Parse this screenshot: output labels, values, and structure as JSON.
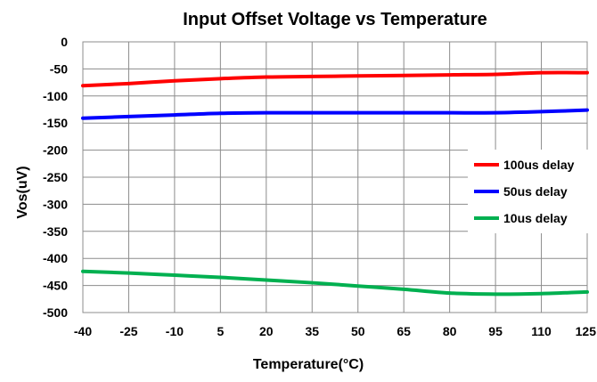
{
  "chart_data": {
    "type": "line",
    "title": "Input Offset Voltage vs Temperature",
    "xlabel": "Temperature(°C)",
    "ylabel": "Vos(uV)",
    "x": [
      -40,
      -25,
      -10,
      5,
      20,
      35,
      50,
      65,
      80,
      95,
      110,
      125
    ],
    "x_tick_labels": [
      "-40",
      "-25",
      "-10",
      "5",
      "20",
      "35",
      "50",
      "65",
      "80",
      "95",
      "110",
      "125"
    ],
    "xlim": [
      -40,
      125
    ],
    "ylim": [
      -500,
      0
    ],
    "y_ticks": [
      0,
      -50,
      -100,
      -150,
      -200,
      -250,
      -300,
      -350,
      -400,
      -450,
      -500
    ],
    "y_tick_labels": [
      "0",
      "-50",
      "-100",
      "-150",
      "-200",
      "-250",
      "-300",
      "-350",
      "-400",
      "-450",
      "-500"
    ],
    "grid": true,
    "legend_position": "right",
    "series": [
      {
        "name": "100us delay",
        "color": "#ff0000",
        "values": [
          -81,
          -77,
          -72,
          -68,
          -65,
          -64,
          -63,
          -62,
          -61,
          -60,
          -57,
          -57
        ]
      },
      {
        "name": "50us delay",
        "color": "#0000ff",
        "values": [
          -141,
          -138,
          -135,
          -132,
          -131,
          -131,
          -131,
          -131,
          -131,
          -131,
          -129,
          -126
        ]
      },
      {
        "name": "10us delay",
        "color": "#00b050",
        "values": [
          -424,
          -427,
          -431,
          -435,
          -440,
          -445,
          -451,
          -457,
          -464,
          -466,
          -465,
          -462
        ]
      }
    ]
  }
}
